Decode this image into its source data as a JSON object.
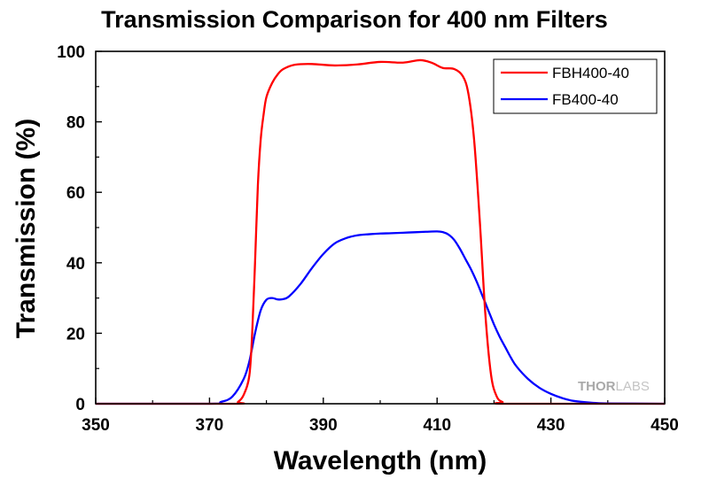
{
  "chart_data": {
    "type": "line",
    "title": "Transmission Comparison for 400 nm Filters",
    "xlabel": "Wavelength (nm)",
    "ylabel": "Transmission (%)",
    "xlim": [
      350,
      450
    ],
    "ylim": [
      0,
      100
    ],
    "x_ticks": [
      "350",
      "370",
      "390",
      "410",
      "430",
      "450"
    ],
    "y_ticks": [
      "0",
      "20",
      "40",
      "60",
      "80",
      "100"
    ],
    "grid": false,
    "legend_position": "top-right",
    "series": [
      {
        "name": "FBH400-40",
        "color": "#ff0000",
        "x": [
          350,
          374,
          375,
          376,
          377,
          377.5,
          378,
          378.5,
          379,
          379.5,
          380,
          381,
          382,
          383,
          385,
          388,
          392,
          396,
          400,
          404,
          407,
          409,
          411,
          413,
          414.5,
          415.5,
          416.5,
          417.5,
          418.5,
          419.5,
          420.5,
          421.5,
          422.5,
          450
        ],
        "y": [
          0,
          0,
          0.5,
          2.5,
          8,
          20,
          40,
          62,
          75,
          82,
          87,
          91,
          93.5,
          95,
          96.2,
          96.4,
          96,
          96.3,
          97,
          96.8,
          97.5,
          96.8,
          95.3,
          95,
          93,
          88,
          75,
          52,
          25,
          8,
          2,
          0.5,
          0,
          0
        ]
      },
      {
        "name": "FB400-40",
        "color": "#0000ff",
        "x": [
          350,
          370,
          372,
          374,
          376,
          377,
          378,
          379,
          380,
          381,
          382,
          383,
          384,
          386,
          388,
          390,
          392,
          394,
          396,
          398,
          400,
          402,
          405,
          408,
          410,
          411,
          412,
          413,
          414,
          415,
          416,
          417,
          418,
          419,
          420,
          421,
          422,
          423,
          424,
          426,
          428,
          430,
          432,
          434,
          437,
          440,
          450
        ],
        "y": [
          0,
          0,
          0.5,
          2,
          7,
          12,
          20,
          26.5,
          29.5,
          30,
          29.6,
          29.7,
          30.5,
          34,
          38.5,
          42.5,
          45.5,
          47,
          47.8,
          48.1,
          48.3,
          48.4,
          48.6,
          48.8,
          48.9,
          48.7,
          48,
          46.5,
          44,
          41,
          38,
          34.5,
          30.5,
          26.5,
          22.5,
          19,
          16,
          13,
          10.5,
          7,
          4.5,
          2.8,
          1.6,
          0.8,
          0.3,
          0.1,
          0
        ]
      }
    ]
  },
  "watermark": {
    "brand_bold": "THOR",
    "brand_light": "LABS"
  }
}
